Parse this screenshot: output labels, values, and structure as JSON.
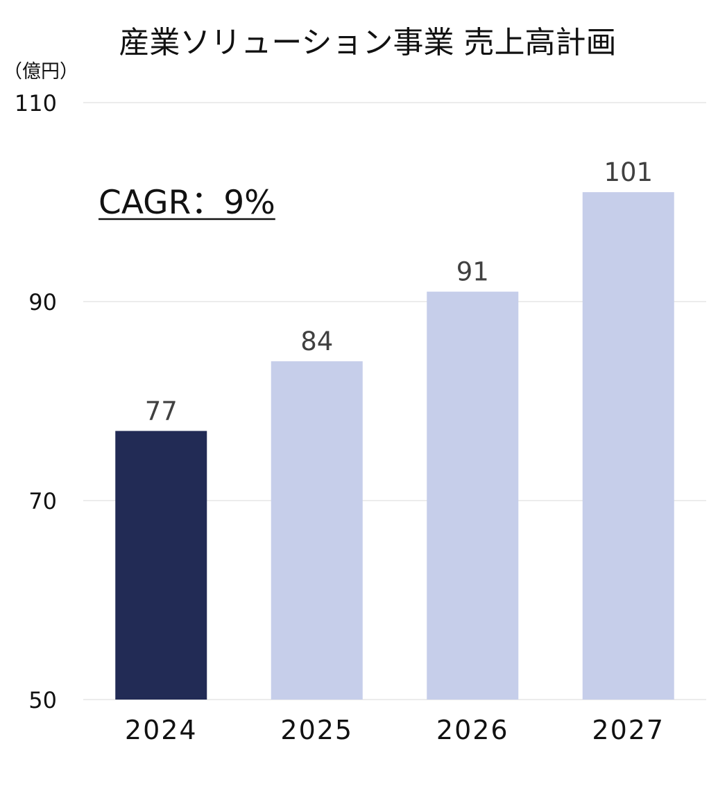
{
  "chart_data": {
    "type": "bar",
    "title": "産業ソリューション事業 売上高計画",
    "unit_label": "（億円）",
    "annotation": "CAGR：9%",
    "categories": [
      "2024",
      "2025",
      "2026",
      "2027"
    ],
    "values": [
      77,
      84,
      91,
      101
    ],
    "data_labels": [
      "77",
      "84",
      "91",
      "101"
    ],
    "ylim": [
      50,
      110
    ],
    "yticks": [
      50,
      70,
      90,
      110
    ],
    "ytick_labels": [
      "50",
      "70",
      "90",
      "110"
    ],
    "grid": true,
    "xlabel": "",
    "ylabel": "",
    "colors": {
      "actual": "#222B55",
      "plan": "#C6CEEA",
      "grid": "#D9D9D9",
      "label": "#404040"
    },
    "bar_color_keys": [
      "actual",
      "plan",
      "plan",
      "plan"
    ]
  }
}
